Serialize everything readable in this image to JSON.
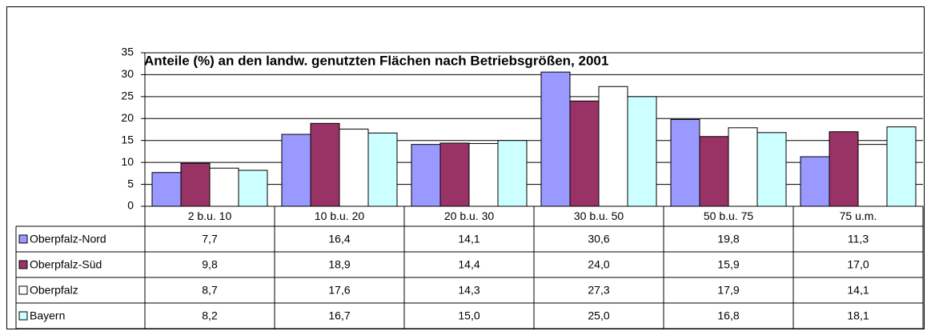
{
  "chart_data": {
    "type": "bar",
    "title": "Anteile (%) an den landw. genutzten Flächen nach Betriebsgrößen, 2001",
    "categories": [
      "2 b.u. 10",
      "10 b.u. 20",
      "20 b.u. 30",
      "30 b.u. 50",
      "50 b.u. 75",
      "75 u.m."
    ],
    "ylim": [
      0,
      35
    ],
    "yticks": [
      0,
      5,
      10,
      15,
      20,
      25,
      30,
      35
    ],
    "grid": true,
    "series": [
      {
        "name": "Oberpfalz-Nord",
        "color": "#9999ff",
        "values": [
          7.7,
          16.4,
          14.1,
          30.6,
          19.8,
          11.3
        ],
        "value_labels": [
          "7,7",
          "16,4",
          "14,1",
          "30,6",
          "19,8",
          "11,3"
        ]
      },
      {
        "name": "Oberpfalz-Süd",
        "color": "#993366",
        "values": [
          9.8,
          18.9,
          14.4,
          24.0,
          15.9,
          17.0
        ],
        "value_labels": [
          "9,8",
          "18,9",
          "14,4",
          "24,0",
          "15,9",
          "17,0"
        ]
      },
      {
        "name": "Oberpfalz",
        "color": "#ffffff",
        "values": [
          8.7,
          17.6,
          14.3,
          27.3,
          17.9,
          14.1
        ],
        "value_labels": [
          "8,7",
          "17,6",
          "14,3",
          "27,3",
          "17,9",
          "14,1"
        ]
      },
      {
        "name": "Bayern",
        "color": "#ccffff",
        "values": [
          8.2,
          16.7,
          15.0,
          25.0,
          16.8,
          18.1
        ],
        "value_labels": [
          "8,2",
          "16,7",
          "15,0",
          "25,0",
          "16,8",
          "18,1"
        ]
      }
    ]
  }
}
